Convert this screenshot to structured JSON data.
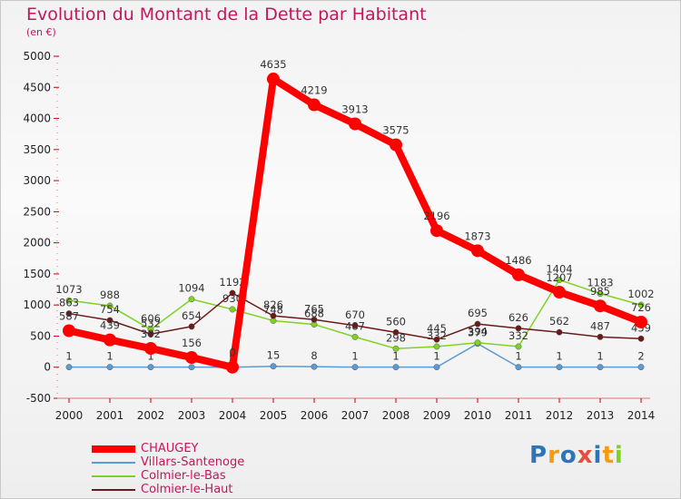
{
  "title": "Evolution du Montant de la Dette par Habitant",
  "subtitle": "(en €)",
  "logo": "Proxiti",
  "chart_data": {
    "type": "line",
    "title": "Evolution du Montant de la Dette par Habitant",
    "ylabel": "(en €)",
    "x": [
      "2000",
      "2001",
      "2002",
      "2003",
      "2004",
      "2005",
      "2006",
      "2007",
      "2008",
      "2009",
      "2010",
      "2011",
      "2012",
      "2013",
      "2014"
    ],
    "ylim": [
      -500,
      5000
    ],
    "yticks": [
      -500,
      0,
      500,
      1000,
      1500,
      2000,
      2500,
      3000,
      3500,
      4000,
      4500,
      5000
    ],
    "grid": false,
    "legend_position": "bottom-left",
    "series": [
      {
        "name": "CHAUGEY",
        "color": "#ff0000",
        "values": [
          587,
          439,
          302,
          156,
          0,
          4635,
          4219,
          3913,
          3575,
          2196,
          1873,
          1486,
          1207,
          985,
          726
        ]
      },
      {
        "name": "Villars-Santenoge",
        "color": "#5b9bd5",
        "values": [
          1,
          1,
          1,
          1,
          0,
          15,
          8,
          1,
          1,
          1,
          379,
          1,
          1,
          1,
          2
        ]
      },
      {
        "name": "Colmier-le-Bas",
        "color": "#7ed321",
        "values": [
          1073,
          988,
          606,
          1094,
          930,
          748,
          688,
          487,
          298,
          332,
          394,
          332,
          1404,
          1183,
          1002
        ]
      },
      {
        "name": "Colmier-le-Haut",
        "color": "#6b1a1a",
        "values": [
          863,
          754,
          532,
          654,
          1192,
          826,
          765,
          670,
          560,
          445,
          695,
          626,
          562,
          487,
          459
        ]
      }
    ]
  }
}
